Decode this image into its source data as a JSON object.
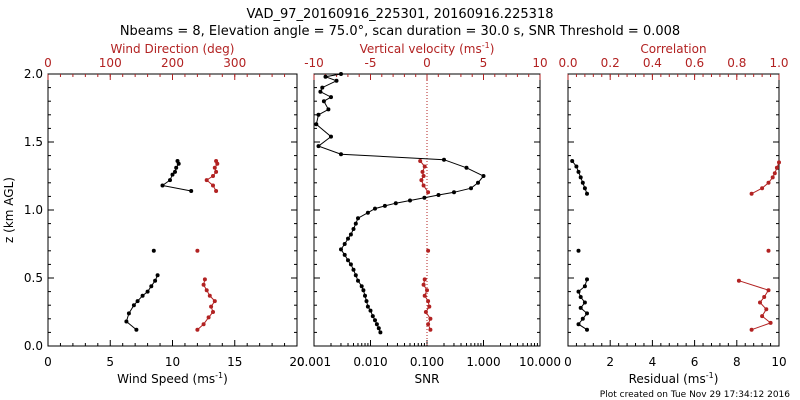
{
  "figure": {
    "title_line1": "VAD_97_20160916_225301, 20160916.225318",
    "title_line2": "Nbeams = 8, Elevation angle = 75.0°, scan duration = 30.0 s, SNR Threshold = 0.008",
    "footer": "Plot created on Tue Nov 29 17:34:12 2016",
    "colors": {
      "black": "#000000",
      "red": "#b22222"
    }
  },
  "chart_data": [
    {
      "type": "line",
      "panel": "wind",
      "ylabel": "z (km AGL)",
      "ylim": [
        0,
        2.0
      ],
      "yticks": [
        "0.0",
        "0.5",
        "1.0",
        "1.5",
        "2.0"
      ],
      "bottom_axis": {
        "label_text": "Wind Speed (ms",
        "label_sup": "-1",
        "label_end": ")",
        "lim": [
          0,
          20
        ],
        "ticks": [
          "0",
          "5",
          "10",
          "15",
          "20"
        ]
      },
      "top_axis": {
        "label": "Wind Direction (deg)",
        "lim": [
          0,
          400
        ],
        "ticks": [
          "0",
          "100",
          "200",
          "300"
        ]
      },
      "series": [
        {
          "axis": "bottom",
          "color": "black",
          "segments": [
            {
              "x": [
                7.1,
                6.3,
                6.5,
                6.9,
                7.2,
                7.6,
                8.0,
                8.3,
                8.6,
                8.8
              ],
              "y": [
                0.12,
                0.18,
                0.24,
                0.3,
                0.33,
                0.37,
                0.4,
                0.44,
                0.48,
                0.52
              ]
            },
            {
              "x": [
                8.5
              ],
              "y": [
                0.7
              ]
            },
            {
              "x": [
                11.5,
                9.2,
                9.8,
                10.0,
                10.2,
                10.3,
                10.5,
                10.4
              ],
              "y": [
                1.14,
                1.18,
                1.22,
                1.26,
                1.28,
                1.31,
                1.34,
                1.36
              ]
            }
          ]
        },
        {
          "axis": "top",
          "color": "red",
          "segments": [
            {
              "x": [
                240,
                250,
                258,
                265,
                262,
                268,
                260,
                255,
                250,
                252
              ],
              "y": [
                0.12,
                0.16,
                0.21,
                0.25,
                0.29,
                0.33,
                0.37,
                0.41,
                0.45,
                0.49
              ]
            },
            {
              "x": [
                240
              ],
              "y": [
                0.7
              ]
            },
            {
              "x": [
                270,
                265,
                255,
                265,
                270,
                268,
                272,
                270
              ],
              "y": [
                1.14,
                1.18,
                1.22,
                1.25,
                1.28,
                1.31,
                1.34,
                1.36
              ]
            }
          ]
        }
      ]
    },
    {
      "type": "line",
      "panel": "snr",
      "ylim": [
        0,
        2.0
      ],
      "bottom_axis": {
        "label": "SNR",
        "scale": "log",
        "lim": [
          0.001,
          10
        ],
        "ticks": [
          "0.001",
          "0.010",
          "0.100",
          "1.000",
          "10.000"
        ]
      },
      "top_axis": {
        "label_text": "Vertical velocity (ms",
        "label_sup": "-1",
        "label_end": ")",
        "lim": [
          -10,
          10
        ],
        "ticks": [
          "-10",
          "-5",
          "0",
          "5",
          "10"
        ]
      },
      "reference_line": {
        "axis": "top",
        "x": 0,
        "style": "dotted",
        "color": "red"
      },
      "series": [
        {
          "axis": "bottom",
          "color": "black",
          "segments": [
            {
              "x": [
                0.015,
                0.014,
                0.013,
                0.012,
                0.011,
                0.01,
                0.009,
                0.0085,
                0.008,
                0.0075,
                0.007,
                0.006,
                0.0055,
                0.005,
                0.0045,
                0.004,
                0.0035,
                0.003,
                0.0035,
                0.004,
                0.0045,
                0.005,
                0.0055,
                0.006,
                0.009,
                0.012,
                0.018,
                0.028,
                0.05,
                0.09,
                0.16,
                0.3,
                0.6,
                0.8,
                1.0,
                0.5,
                0.2,
                0.003,
                0.0012,
                0.002,
                0.0011,
                0.0012,
                0.0018,
                0.0015,
                0.002,
                0.0013,
                0.0014,
                0.0025,
                0.0016,
                0.003
              ],
              "y": [
                0.1,
                0.13,
                0.16,
                0.19,
                0.22,
                0.26,
                0.29,
                0.33,
                0.37,
                0.41,
                0.44,
                0.48,
                0.52,
                0.56,
                0.6,
                0.63,
                0.67,
                0.71,
                0.75,
                0.79,
                0.82,
                0.86,
                0.9,
                0.94,
                0.98,
                1.01,
                1.03,
                1.05,
                1.07,
                1.09,
                1.11,
                1.13,
                1.16,
                1.2,
                1.25,
                1.31,
                1.37,
                1.41,
                1.47,
                1.54,
                1.63,
                1.7,
                1.74,
                1.8,
                1.83,
                1.87,
                1.9,
                1.95,
                1.98,
                2.0
              ]
            }
          ]
        },
        {
          "axis": "top",
          "color": "red",
          "segments": [
            {
              "x": [
                0.3,
                0.1,
                0.3,
                -0.1,
                0.2,
                0.1,
                -0.2,
                0.0,
                -0.3,
                -0.2
              ],
              "y": [
                0.12,
                0.16,
                0.2,
                0.25,
                0.29,
                0.33,
                0.37,
                0.41,
                0.45,
                0.49
              ]
            },
            {
              "x": [
                0.1
              ],
              "y": [
                0.7
              ]
            },
            {
              "x": [
                0.1,
                -0.3,
                -0.5,
                -0.3,
                -0.4,
                -0.2,
                -0.6
              ],
              "y": [
                1.13,
                1.18,
                1.22,
                1.25,
                1.28,
                1.32,
                1.36
              ]
            }
          ]
        }
      ]
    },
    {
      "type": "line",
      "panel": "residual",
      "ylim": [
        0,
        2.0
      ],
      "bottom_axis": {
        "label_text": "Residual (ms",
        "label_sup": "-1",
        "label_end": ")",
        "lim": [
          0,
          10
        ],
        "ticks": [
          "0",
          "2",
          "4",
          "6",
          "8",
          "10"
        ]
      },
      "top_axis": {
        "label": "Correlation",
        "lim": [
          0,
          1
        ],
        "ticks": [
          "0.0",
          "0.2",
          "0.4",
          "0.6",
          "0.8",
          "1.0"
        ]
      },
      "series": [
        {
          "axis": "bottom",
          "color": "black",
          "segments": [
            {
              "x": [
                0.9,
                0.5,
                0.7,
                0.9,
                0.6,
                0.8,
                0.6,
                0.5,
                0.8,
                0.9
              ],
              "y": [
                0.12,
                0.16,
                0.2,
                0.24,
                0.28,
                0.32,
                0.36,
                0.4,
                0.44,
                0.49
              ]
            },
            {
              "x": [
                0.5
              ],
              "y": [
                0.7
              ]
            },
            {
              "x": [
                0.9,
                0.8,
                0.7,
                0.6,
                0.5,
                0.4,
                0.2
              ],
              "y": [
                1.12,
                1.16,
                1.2,
                1.24,
                1.28,
                1.32,
                1.36
              ]
            }
          ]
        },
        {
          "axis": "top",
          "color": "red",
          "segments": [
            {
              "x": [
                0.87,
                0.96,
                0.92,
                0.94,
                0.91,
                0.93,
                0.95,
                0.81
              ],
              "y": [
                0.12,
                0.17,
                0.22,
                0.27,
                0.32,
                0.36,
                0.41,
                0.48
              ]
            },
            {
              "x": [
                0.95
              ],
              "y": [
                0.7
              ]
            },
            {
              "x": [
                0.87,
                0.92,
                0.95,
                0.97,
                0.98,
                0.99,
                1.0
              ],
              "y": [
                1.12,
                1.16,
                1.2,
                1.24,
                1.27,
                1.31,
                1.35
              ]
            }
          ]
        }
      ]
    }
  ]
}
